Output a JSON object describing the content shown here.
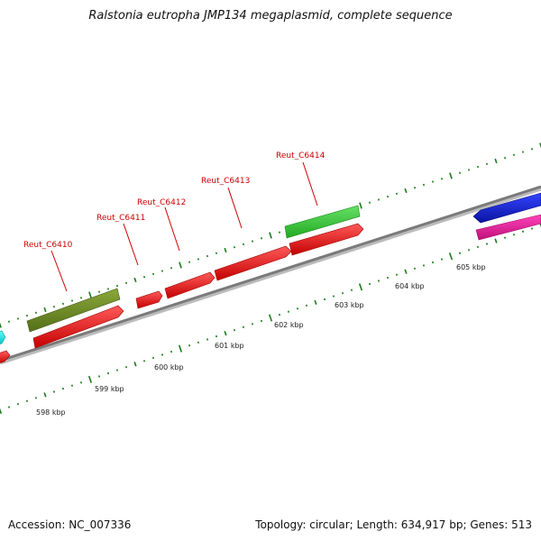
{
  "title": "Ralstonia eutropha JMP134 megaplasmid, complete sequence",
  "footer": {
    "accession": "Accession: NC_007336",
    "summary": "Topology: circular; Length: 634,917 bp; Genes: 513"
  },
  "scale_labels": [
    "598 kbp",
    "599 kbp",
    "600 kbp",
    "601 kbp",
    "602 kbp",
    "603 kbp",
    "604 kbp",
    "605 kbp"
  ],
  "gene_labels": [
    "Reut_C6410",
    "Reut_C6411",
    "Reut_C6412",
    "Reut_C6413",
    "Reut_C6414"
  ],
  "colors": {
    "backbone": "#8a8a8a",
    "tick": "#1a7a1a",
    "gene_red": "#ee1111",
    "gene_olive": "#6b8c23",
    "gene_green": "#33cc33",
    "gene_blue": "#1122dd",
    "gene_pink": "#ee1199",
    "gene_cyan": "#22dddd",
    "label_red": "#cc0000"
  }
}
